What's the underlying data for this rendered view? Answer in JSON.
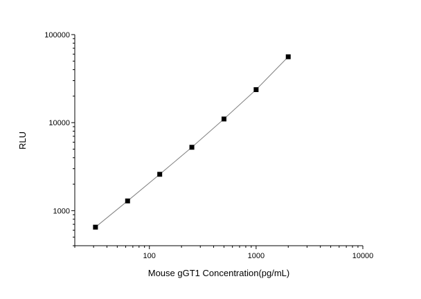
{
  "chart_data": {
    "type": "line",
    "title": "",
    "xlabel": "Mouse gGT1 Concentration(pg/mL)",
    "ylabel": "RLU",
    "x_scale": "log",
    "y_scale": "log",
    "xlim": [
      20,
      10000
    ],
    "ylim": [
      400,
      100000
    ],
    "x_ticks": [
      "100",
      "1000",
      "10000"
    ],
    "y_ticks": [
      "1000",
      "10000",
      "100000"
    ],
    "grid": false,
    "legend": "none",
    "series": [
      {
        "x": [
          31.25,
          62.5,
          125,
          250,
          500,
          1000,
          2000
        ],
        "y": [
          650,
          1290,
          2590,
          5250,
          11000,
          23700,
          56000
        ],
        "marker": "square",
        "marker_color": "#000000",
        "line_color": "#808080"
      }
    ]
  }
}
